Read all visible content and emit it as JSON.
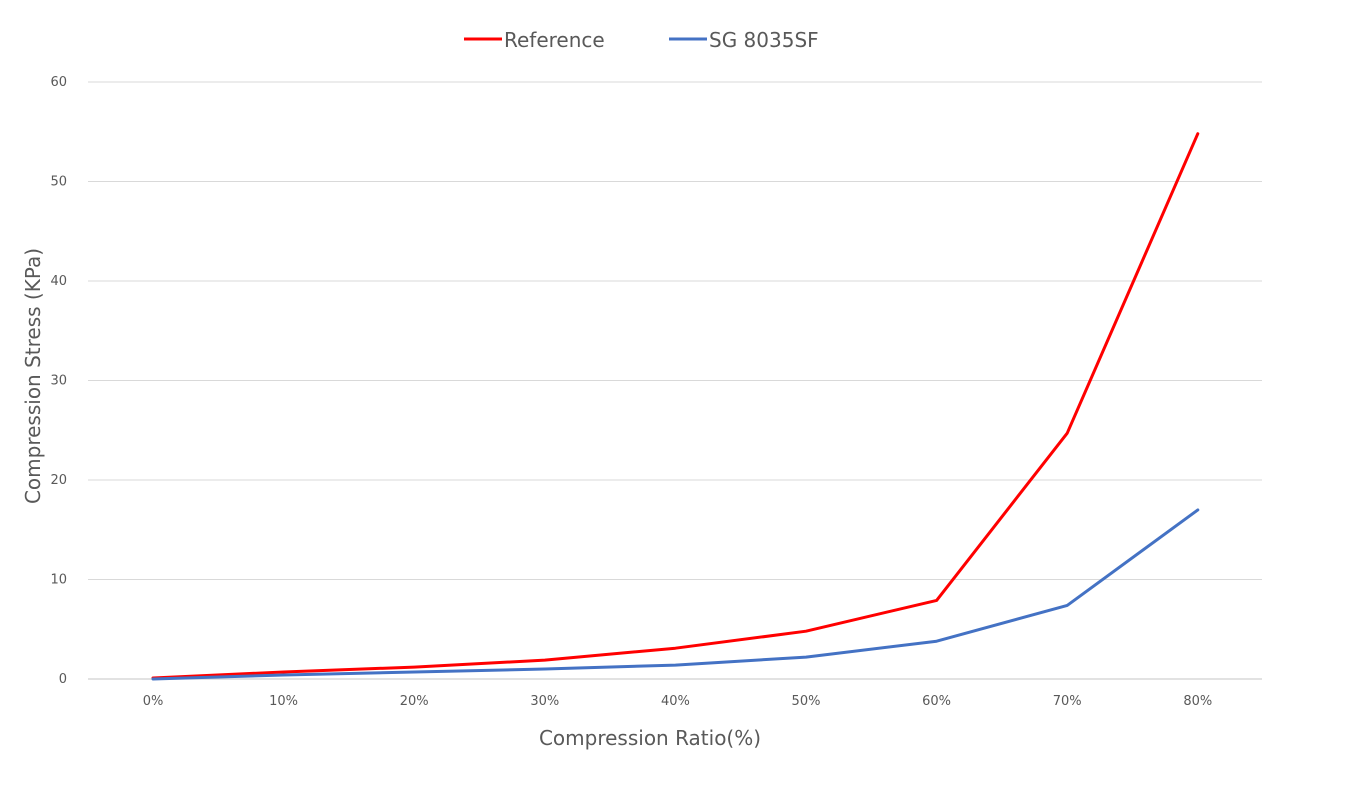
{
  "chart_data": {
    "type": "line",
    "title": "",
    "xlabel": "Compression Ratio(%)",
    "ylabel": "Compression Stress (KPa)",
    "categories": [
      "0%",
      "10%",
      "20%",
      "30%",
      "40%",
      "50%",
      "60%",
      "70%",
      "80%"
    ],
    "ylim": [
      0,
      60
    ],
    "yticks": [
      0,
      10,
      20,
      30,
      40,
      50,
      60
    ],
    "grid": true,
    "legend_position": "top",
    "series": [
      {
        "name": "Reference",
        "color": "#ff0000",
        "values": [
          0.1,
          0.7,
          1.2,
          1.9,
          3.1,
          4.8,
          7.9,
          24.7,
          54.8
        ]
      },
      {
        "name": "SG 8035SF",
        "color": "#4472c4",
        "values": [
          0.0,
          0.4,
          0.7,
          1.0,
          1.4,
          2.2,
          3.8,
          7.4,
          17.0
        ]
      }
    ]
  }
}
